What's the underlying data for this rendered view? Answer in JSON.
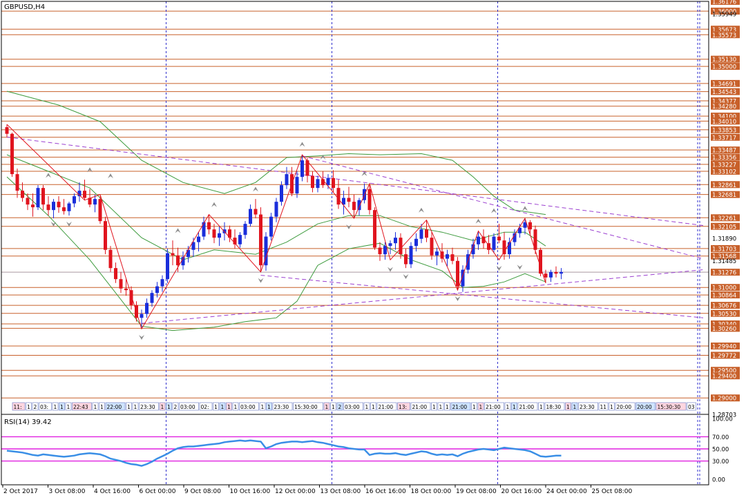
{
  "chart_data": {
    "type": "candlestick",
    "symbol_label": "GBPUSD,H4",
    "colors": {
      "bull": "#1a2edb",
      "bear": "#e0141e",
      "level": "#c8602a",
      "grid": "#2c2ccc",
      "trend": "#9b3fd0",
      "band": "#3c9a3c",
      "zigzag": "#e0141e",
      "rsi": "#3a8ee6",
      "rsi_level": "#e020e0",
      "current": "#b4b4c8",
      "axis_text": "#000000"
    },
    "y_range": [
      1.28703,
      1.36176
    ],
    "price_labels": [
      "1.36176",
      "1.36000",
      "1.35949",
      "1.35673",
      "1.35573",
      "1.35130",
      "1.35000",
      "1.34691",
      "1.34543",
      "1.34377",
      "1.34280",
      "1.34100",
      "1.34010",
      "1.33853",
      "1.33717",
      "1.33487",
      "1.33356",
      "1.33227",
      "1.33102",
      "1.32861",
      "1.32681",
      "1.32261",
      "1.32105",
      "1.31890",
      "1.31703",
      "1.31568",
      "1.31485",
      "1.31276",
      "1.31000",
      "1.30864",
      "1.30676",
      "1.30530",
      "1.30340",
      "1.30260",
      "1.29940",
      "1.29772",
      "1.29500",
      "1.29400",
      "1.29000",
      "1.28703"
    ],
    "highlight_prices": [
      "1.36176",
      "1.36000",
      "1.35673",
      "1.35573",
      "1.35130",
      "1.35000",
      "1.34691",
      "1.34543",
      "1.34377",
      "1.34280",
      "1.34100",
      "1.34010",
      "1.33853",
      "1.33717",
      "1.33487",
      "1.33356",
      "1.33227",
      "1.33102",
      "1.32861",
      "1.32681",
      "1.32261",
      "1.32105",
      "1.31703",
      "1.31568",
      "1.31276",
      "1.31000",
      "1.30864",
      "1.30676",
      "1.30530",
      "1.30340",
      "1.30260",
      "1.29940",
      "1.29772",
      "1.29500",
      "1.29400",
      "1.29000"
    ],
    "levels": [
      1.36176,
      1.36,
      1.35673,
      1.35573,
      1.3513,
      1.35,
      1.34691,
      1.34543,
      1.34377,
      1.3428,
      1.341,
      1.3401,
      1.33853,
      1.33717,
      1.33487,
      1.33356,
      1.33227,
      1.33102,
      1.32861,
      1.32681,
      1.32261,
      1.32105,
      1.31703,
      1.31568,
      1.31276,
      1.31,
      1.30864,
      1.30676,
      1.3053,
      1.3034,
      1.3026,
      1.2994,
      1.29772,
      1.295,
      1.294,
      1.29
    ],
    "current_price": 1.31276,
    "x_labels": [
      "2 Oct 2017",
      "3 Oct 08:00",
      "4 Oct 16:00",
      "6 Oct 00:00",
      "9 Oct 08:00",
      "10 Oct 16:00",
      "12 Oct 00:00",
      "13 Oct 08:00",
      "16 Oct 16:00",
      "18 Oct 00:00",
      "19 Oct 08:00",
      "20 Oct 16:00",
      "24 Oct 00:00",
      "25 Oct 08:00"
    ],
    "candles_ohlc": [
      [
        1.339,
        1.3395,
        1.3372,
        1.3378
      ],
      [
        1.3378,
        1.338,
        1.33,
        1.3305
      ],
      [
        1.3305,
        1.3315,
        1.3262,
        1.3275
      ],
      [
        1.3275,
        1.329,
        1.3255,
        1.3262
      ],
      [
        1.3262,
        1.327,
        1.324,
        1.325
      ],
      [
        1.325,
        1.327,
        1.3228,
        1.3245
      ],
      [
        1.3245,
        1.3285,
        1.324,
        1.328
      ],
      [
        1.328,
        1.3285,
        1.324,
        1.325
      ],
      [
        1.325,
        1.3265,
        1.323,
        1.324
      ],
      [
        1.324,
        1.326,
        1.3225,
        1.3255
      ],
      [
        1.3255,
        1.3265,
        1.3235,
        1.3245
      ],
      [
        1.3245,
        1.326,
        1.3232,
        1.3238
      ],
      [
        1.3238,
        1.3255,
        1.323,
        1.3252
      ],
      [
        1.3252,
        1.327,
        1.3245,
        1.3265
      ],
      [
        1.3265,
        1.329,
        1.3255,
        1.3275
      ],
      [
        1.3275,
        1.3295,
        1.3258,
        1.3262
      ],
      [
        1.3262,
        1.3278,
        1.3245,
        1.325
      ],
      [
        1.325,
        1.3268,
        1.3236,
        1.326
      ],
      [
        1.326,
        1.3265,
        1.3215,
        1.322
      ],
      [
        1.322,
        1.3228,
        1.316,
        1.3168
      ],
      [
        1.3168,
        1.3175,
        1.3128,
        1.3135
      ],
      [
        1.3135,
        1.3145,
        1.3108,
        1.3115
      ],
      [
        1.3115,
        1.3128,
        1.309,
        1.3098
      ],
      [
        1.3098,
        1.3115,
        1.3085,
        1.3095
      ],
      [
        1.3095,
        1.3102,
        1.306,
        1.3068
      ],
      [
        1.3068,
        1.3075,
        1.3038,
        1.3045
      ],
      [
        1.3045,
        1.306,
        1.3025,
        1.3052
      ],
      [
        1.3052,
        1.308,
        1.3045,
        1.3072
      ],
      [
        1.3072,
        1.3095,
        1.3065,
        1.309
      ],
      [
        1.309,
        1.311,
        1.3082,
        1.3102
      ],
      [
        1.3102,
        1.3122,
        1.3092,
        1.3115
      ],
      [
        1.3115,
        1.317,
        1.3108,
        1.3162
      ],
      [
        1.3162,
        1.3185,
        1.314,
        1.3158
      ],
      [
        1.3158,
        1.3172,
        1.3128,
        1.314
      ],
      [
        1.314,
        1.3165,
        1.3132,
        1.3155
      ],
      [
        1.3155,
        1.3175,
        1.3145,
        1.3168
      ],
      [
        1.3168,
        1.319,
        1.3155,
        1.3182
      ],
      [
        1.3182,
        1.32,
        1.3165,
        1.3192
      ],
      [
        1.3192,
        1.3228,
        1.3186,
        1.3218
      ],
      [
        1.3218,
        1.3232,
        1.3196,
        1.3205
      ],
      [
        1.3205,
        1.3215,
        1.318,
        1.319
      ],
      [
        1.319,
        1.321,
        1.3175,
        1.3198
      ],
      [
        1.3198,
        1.3218,
        1.3185,
        1.3205
      ],
      [
        1.3205,
        1.3212,
        1.3182,
        1.319
      ],
      [
        1.319,
        1.3205,
        1.317,
        1.3178
      ],
      [
        1.3178,
        1.32,
        1.3172,
        1.3195
      ],
      [
        1.3195,
        1.322,
        1.3188,
        1.3215
      ],
      [
        1.3215,
        1.325,
        1.321,
        1.3242
      ],
      [
        1.3242,
        1.326,
        1.3225,
        1.3232
      ],
      [
        1.3232,
        1.3245,
        1.3128,
        1.314
      ],
      [
        1.314,
        1.32,
        1.313,
        1.3192
      ],
      [
        1.3192,
        1.3235,
        1.3185,
        1.3228
      ],
      [
        1.3228,
        1.3262,
        1.3218,
        1.3255
      ],
      [
        1.3255,
        1.3292,
        1.3248,
        1.3285
      ],
      [
        1.3285,
        1.3318,
        1.3278,
        1.3305
      ],
      [
        1.3305,
        1.3318,
        1.3265,
        1.327
      ],
      [
        1.327,
        1.331,
        1.3262,
        1.33
      ],
      [
        1.33,
        1.334,
        1.3292,
        1.333
      ],
      [
        1.333,
        1.3334,
        1.329,
        1.3302
      ],
      [
        1.3302,
        1.331,
        1.3272,
        1.328
      ],
      [
        1.328,
        1.3302,
        1.3272,
        1.3296
      ],
      [
        1.3296,
        1.331,
        1.328,
        1.3285
      ],
      [
        1.3285,
        1.3305,
        1.3278,
        1.3298
      ],
      [
        1.3298,
        1.3312,
        1.3272,
        1.328
      ],
      [
        1.328,
        1.3295,
        1.3242,
        1.325
      ],
      [
        1.325,
        1.3275,
        1.3232,
        1.3262
      ],
      [
        1.3262,
        1.3282,
        1.3245,
        1.3255
      ],
      [
        1.3255,
        1.3268,
        1.3225,
        1.324
      ],
      [
        1.324,
        1.3262,
        1.323,
        1.3258
      ],
      [
        1.3258,
        1.3288,
        1.3252,
        1.3278
      ],
      [
        1.3278,
        1.3285,
        1.3232,
        1.324
      ],
      [
        1.324,
        1.3245,
        1.3168,
        1.3172
      ],
      [
        1.3172,
        1.3182,
        1.3148,
        1.316
      ],
      [
        1.316,
        1.3182,
        1.315,
        1.3175
      ],
      [
        1.3175,
        1.3185,
        1.316,
        1.318
      ],
      [
        1.318,
        1.32,
        1.3168,
        1.319
      ],
      [
        1.319,
        1.3198,
        1.3152,
        1.316
      ],
      [
        1.316,
        1.317,
        1.3135,
        1.3142
      ],
      [
        1.3142,
        1.3182,
        1.3135,
        1.3175
      ],
      [
        1.3175,
        1.3198,
        1.3165,
        1.3188
      ],
      [
        1.3188,
        1.3215,
        1.318,
        1.3205
      ],
      [
        1.3205,
        1.3222,
        1.3182,
        1.319
      ],
      [
        1.319,
        1.32,
        1.315,
        1.3158
      ],
      [
        1.3158,
        1.3172,
        1.314,
        1.3165
      ],
      [
        1.3165,
        1.318,
        1.3145,
        1.3152
      ],
      [
        1.3152,
        1.3168,
        1.3138,
        1.316
      ],
      [
        1.316,
        1.3172,
        1.3142,
        1.3148
      ],
      [
        1.3148,
        1.3155,
        1.3095,
        1.3102
      ],
      [
        1.3102,
        1.314,
        1.3092,
        1.3132
      ],
      [
        1.3132,
        1.3168,
        1.3125,
        1.316
      ],
      [
        1.316,
        1.3188,
        1.3152,
        1.3178
      ],
      [
        1.3178,
        1.3202,
        1.3168,
        1.3192
      ],
      [
        1.3192,
        1.3205,
        1.317,
        1.318
      ],
      [
        1.318,
        1.3195,
        1.316,
        1.3168
      ],
      [
        1.3168,
        1.3198,
        1.3162,
        1.3192
      ],
      [
        1.3192,
        1.3215,
        1.318,
        1.3185
      ],
      [
        1.3185,
        1.32,
        1.315,
        1.316
      ],
      [
        1.316,
        1.319,
        1.3152,
        1.3182
      ],
      [
        1.3182,
        1.3205,
        1.3175,
        1.3198
      ],
      [
        1.3198,
        1.3215,
        1.319,
        1.3208
      ],
      [
        1.3208,
        1.3225,
        1.3196,
        1.3218
      ],
      [
        1.3218,
        1.3222,
        1.3195,
        1.3205
      ],
      [
        1.3205,
        1.3212,
        1.316,
        1.3168
      ],
      [
        1.3168,
        1.3172,
        1.312,
        1.3125
      ],
      [
        1.3125,
        1.3132,
        1.3108,
        1.3118
      ],
      [
        1.3118,
        1.3132,
        1.311,
        1.3128
      ],
      [
        1.3128,
        1.3138,
        1.3118,
        1.3125
      ],
      [
        1.3125,
        1.3135,
        1.3115,
        1.3128
      ]
    ],
    "zigzag_points": [
      [
        0,
        1.3395
      ],
      [
        15,
        1.3258
      ],
      [
        18,
        1.3268
      ],
      [
        26,
        1.3025
      ],
      [
        39,
        1.3232
      ],
      [
        49,
        1.3128
      ],
      [
        57,
        1.334
      ],
      [
        63,
        1.3272
      ],
      [
        67,
        1.3225
      ],
      [
        70,
        1.3288
      ],
      [
        74,
        1.315
      ],
      [
        81,
        1.3222
      ],
      [
        87,
        1.3095
      ],
      [
        91,
        1.3202
      ],
      [
        95,
        1.315
      ],
      [
        100,
        1.3225
      ],
      [
        104,
        1.3108
      ]
    ],
    "trend_lines": [
      [
        [
          0,
          1.3372
        ],
        [
          150,
          1.3212
        ]
      ],
      [
        [
          57,
          1.3338
        ],
        [
          150,
          1.3152
        ]
      ],
      [
        [
          49,
          1.3122
        ],
        [
          150,
          1.3045
        ]
      ],
      [
        [
          26,
          1.3035
        ],
        [
          150,
          1.3132
        ]
      ]
    ],
    "band_upper": [
      [
        0,
        1.3455
      ],
      [
        4,
        1.3445
      ],
      [
        10,
        1.343
      ],
      [
        18,
        1.34
      ],
      [
        26,
        1.333
      ],
      [
        34,
        1.329
      ],
      [
        42,
        1.327
      ],
      [
        48,
        1.329
      ],
      [
        54,
        1.3335
      ],
      [
        60,
        1.3338
      ],
      [
        66,
        1.3342
      ],
      [
        72,
        1.334
      ],
      [
        80,
        1.3342
      ],
      [
        86,
        1.333
      ],
      [
        90,
        1.33
      ],
      [
        94,
        1.3265
      ],
      [
        98,
        1.324
      ],
      [
        104,
        1.3232
      ]
    ],
    "band_middle": [
      [
        0,
        1.334
      ],
      [
        8,
        1.331
      ],
      [
        16,
        1.328
      ],
      [
        26,
        1.319
      ],
      [
        34,
        1.315
      ],
      [
        40,
        1.3168
      ],
      [
        48,
        1.316
      ],
      [
        54,
        1.3182
      ],
      [
        60,
        1.3215
      ],
      [
        66,
        1.323
      ],
      [
        72,
        1.323
      ],
      [
        78,
        1.321
      ],
      [
        84,
        1.32
      ],
      [
        90,
        1.3185
      ],
      [
        96,
        1.32
      ],
      [
        100,
        1.32
      ],
      [
        104,
        1.3175
      ]
    ],
    "band_lower": [
      [
        0,
        1.33
      ],
      [
        8,
        1.323
      ],
      [
        16,
        1.315
      ],
      [
        26,
        1.303
      ],
      [
        32,
        1.3022
      ],
      [
        40,
        1.3028
      ],
      [
        46,
        1.3038
      ],
      [
        52,
        1.3045
      ],
      [
        56,
        1.3075
      ],
      [
        60,
        1.314
      ],
      [
        66,
        1.317
      ],
      [
        72,
        1.318
      ],
      [
        78,
        1.315
      ],
      [
        84,
        1.313
      ],
      [
        88,
        1.31
      ],
      [
        92,
        1.3102
      ],
      [
        96,
        1.311
      ],
      [
        100,
        1.3125
      ],
      [
        104,
        1.311
      ]
    ],
    "fractal_up": [
      [
        8,
        1.3286
      ],
      [
        16,
        1.3296
      ],
      [
        20,
        1.3285
      ],
      [
        33,
        1.3186
      ],
      [
        40,
        1.3233
      ],
      [
        48,
        1.3261
      ],
      [
        57,
        1.3342
      ],
      [
        61,
        1.3319
      ],
      [
        69,
        1.3289
      ],
      [
        80,
        1.3223
      ],
      [
        91,
        1.3203
      ],
      [
        94,
        1.3222
      ],
      [
        100,
        1.3226
      ]
    ],
    "fractal_down": [
      [
        9,
        1.3229
      ],
      [
        12,
        1.3229
      ],
      [
        26,
        1.3024
      ],
      [
        49,
        1.3127
      ],
      [
        66,
        1.3224
      ],
      [
        74,
        1.3147
      ],
      [
        77,
        1.3134
      ],
      [
        87,
        1.3094
      ],
      [
        95,
        1.3149
      ],
      [
        99,
        1.3151
      ]
    ],
    "volume_labels": [
      "11:",
      "1",
      "2",
      "03:",
      "1",
      "1",
      "1",
      "22:43",
      "1",
      "1",
      "22:00",
      "1",
      "1",
      "23:30",
      "1",
      "1",
      "2",
      "03:00",
      "02:",
      "1",
      "1",
      "1",
      "1",
      "03:00",
      "1",
      "1",
      "23:30",
      "15:30:00",
      "1",
      "1",
      "2",
      "03:00",
      "1",
      "1",
      "21:00",
      "13:",
      "21:00",
      "1",
      "1",
      "1",
      "21:00",
      "1",
      "1",
      "21:00",
      "1",
      "1",
      "21:00",
      "1",
      "18:30",
      "1",
      "1",
      "23:30",
      "11",
      "1",
      "20:00",
      "20:00",
      "15:30:30",
      "03"
    ],
    "rsi_title": "RSI(14) 39.42",
    "rsi_ticks": [
      "100.00",
      "70.00",
      "50.00",
      "30.00",
      "0.00"
    ],
    "rsi_levels": [
      70,
      50,
      30
    ],
    "rsi_values": [
      47,
      46,
      45,
      44,
      42,
      40,
      39,
      41,
      40,
      39,
      38,
      37,
      38,
      39,
      41,
      42,
      43,
      42,
      41,
      38,
      34,
      32,
      30,
      27,
      25,
      24,
      22,
      25,
      29,
      34,
      38,
      42,
      47,
      51,
      53,
      54,
      54,
      55,
      56,
      57,
      58,
      59,
      61,
      62,
      63,
      64,
      63,
      64,
      63,
      62,
      51,
      54,
      58,
      60,
      61,
      62,
      62,
      61,
      62,
      63,
      61,
      60,
      58,
      56,
      54,
      53,
      51,
      50,
      49,
      49,
      40,
      42,
      43,
      42,
      42,
      43,
      41,
      40,
      42,
      44,
      46,
      45,
      42,
      40,
      41,
      40,
      41,
      38,
      42,
      45,
      47,
      49,
      50,
      49,
      48,
      50,
      52,
      51,
      50,
      49,
      48,
      46,
      42,
      38,
      37,
      38,
      39,
      39
    ]
  }
}
